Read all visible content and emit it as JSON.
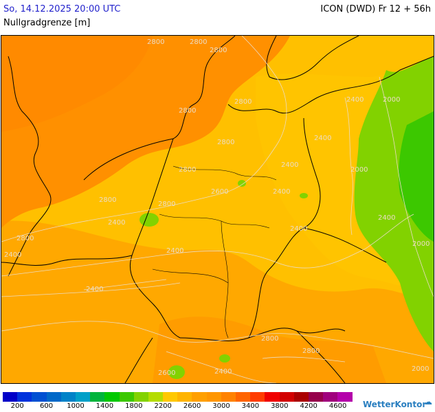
{
  "header": {
    "date": "So, 14.12.2025 20:00 UTC",
    "model": "ICON (DWD) Fr 12 + 56h",
    "parameter": "Nullgradgrenze [m]"
  },
  "legend": {
    "colors": [
      "#0000c8",
      "#0032dc",
      "#0050d2",
      "#0068c8",
      "#0082c8",
      "#00a0c8",
      "#00b43c",
      "#00c800",
      "#3cc800",
      "#82d200",
      "#b4dc00",
      "#ffc800",
      "#ffb400",
      "#ffa000",
      "#ff9600",
      "#ff8200",
      "#ff6400",
      "#ff3c00",
      "#f00000",
      "#d20000",
      "#aa0000",
      "#96004b",
      "#a0007d",
      "#b400aa"
    ],
    "labels": [
      "200",
      "600",
      "1000",
      "1400",
      "1800",
      "2200",
      "2600",
      "3000",
      "3400",
      "3800",
      "4200",
      "4600"
    ]
  },
  "map": {
    "contour_labels": [
      "2800",
      "2800",
      "2800",
      "2800",
      "2800",
      "2800",
      "2800",
      "2800",
      "2800",
      "2800",
      "2600",
      "2400",
      "2400",
      "2400",
      "2400",
      "2400",
      "2400",
      "2400",
      "2400",
      "2400",
      "2000",
      "2000",
      "2000",
      "2000",
      "2600",
      "2800",
      "2800",
      "2400",
      "2400"
    ]
  },
  "brand": {
    "name": "WetterKontor",
    "icon": "weather-icon"
  }
}
